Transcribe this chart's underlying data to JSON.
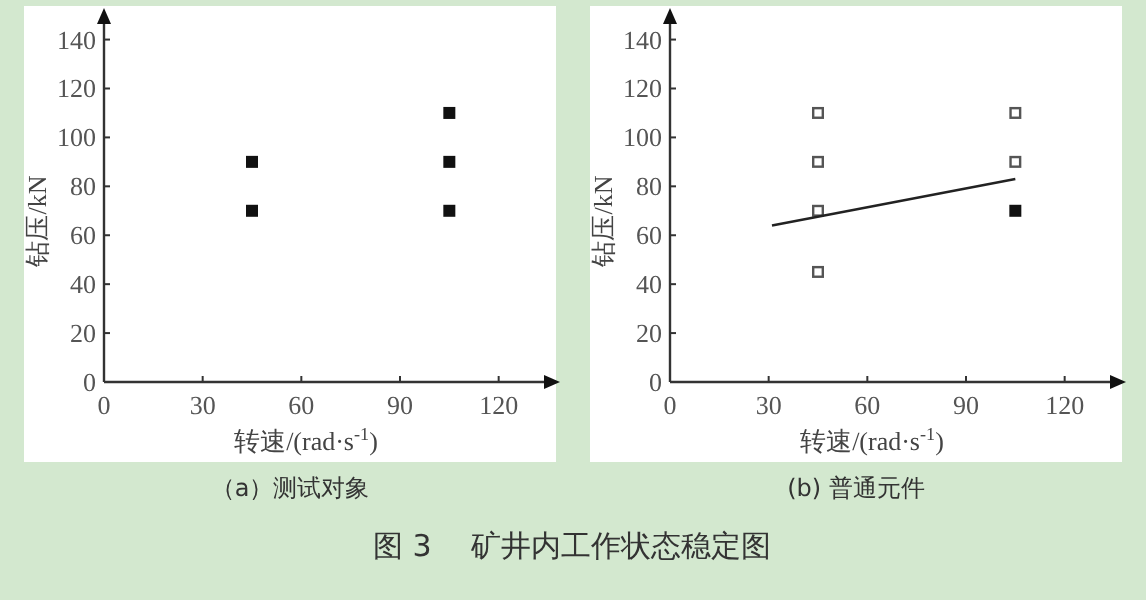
{
  "chart_data": [
    {
      "type": "scatter",
      "title": "（a）测试对象",
      "xlabel": "转速/(rad·s$^{-1}$)",
      "ylabel": "钻压/kN",
      "xlim": [
        0,
        135
      ],
      "ylim": [
        0,
        148
      ],
      "xticks": [
        0,
        30,
        60,
        90,
        120
      ],
      "yticks": [
        0,
        20,
        40,
        60,
        80,
        100,
        120,
        140
      ],
      "grid": false,
      "marker": "square",
      "annotations": [
        "图 3　 矿井内工作状态稳定图"
      ],
      "series": [
        {
          "color": "#111111",
          "x": [
            45,
            45,
            105,
            105,
            105
          ],
          "values": [
            90,
            70,
            110,
            90,
            70
          ]
        }
      ]
    },
    {
      "type": "scatter",
      "title": "(b) 普通元件",
      "xlabel": "转速/(rad·s$^{-1}$)",
      "ylabel": "钻压/kN",
      "xlim": [
        0,
        135
      ],
      "ylim": [
        0,
        148
      ],
      "xticks": [
        0,
        30,
        60,
        90,
        120
      ],
      "yticks": [
        0,
        20,
        40,
        60,
        80,
        100,
        120,
        140
      ],
      "grid": false,
      "marker": "square",
      "series": [
        {
          "color": "#555555",
          "marker": "square-open",
          "x": [
            45,
            45,
            45,
            45,
            105,
            105
          ],
          "values": [
            110,
            90,
            70,
            45,
            110,
            90
          ]
        },
        {
          "color": "#111111",
          "x": [
            105
          ],
          "values": [
            70
          ]
        },
        {
          "type": "line",
          "marker": "none",
          "color": "#222222",
          "x": [
            31,
            105
          ],
          "values": [
            64,
            83
          ]
        }
      ]
    }
  ]
}
